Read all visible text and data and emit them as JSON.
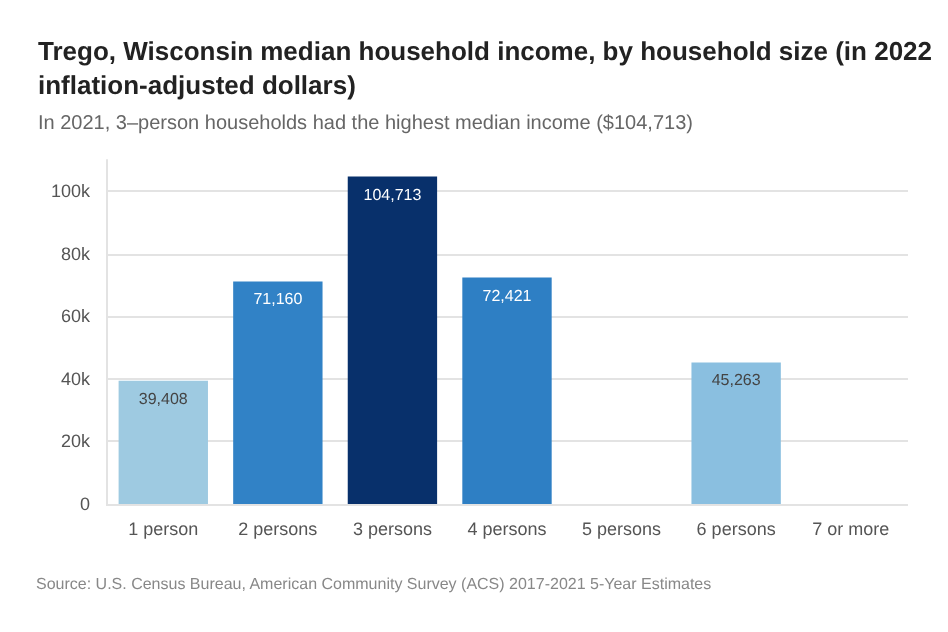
{
  "chart_data": {
    "type": "bar",
    "title": "Trego, Wisconsin median household income, by household size (in 2022 inflation-adjusted dollars)",
    "subtitle": "In 2021, 3–person households had the highest median income ($104,713)",
    "categories": [
      "1 person",
      "2 persons",
      "3 persons",
      "4 persons",
      "5 persons",
      "6 persons",
      "7 or more"
    ],
    "values": [
      39408,
      71160,
      104713,
      72421,
      null,
      45263,
      null
    ],
    "colors": [
      "#9ecae1",
      "#3182c6",
      "#08306b",
      "#2e7fc4",
      "#9ecae1",
      "#8abfe0",
      "#9ecae1"
    ],
    "value_labels": [
      "39,408",
      "71,160",
      "104,713",
      "72,421",
      null,
      "45,263",
      null
    ],
    "ylim": [
      0,
      110000
    ],
    "yticks": [
      {
        "value": 0,
        "label": "0"
      },
      {
        "value": 20000,
        "label": "20k"
      },
      {
        "value": 40000,
        "label": "40k"
      },
      {
        "value": 60000,
        "label": "60k"
      },
      {
        "value": 80000,
        "label": "80k"
      },
      {
        "value": 100000,
        "label": "100k"
      }
    ],
    "grid": "y",
    "annotations": [
      "Source: U.S. Census Bureau, American Community Survey (ACS) 2017-2021 5-Year Estimates"
    ]
  }
}
